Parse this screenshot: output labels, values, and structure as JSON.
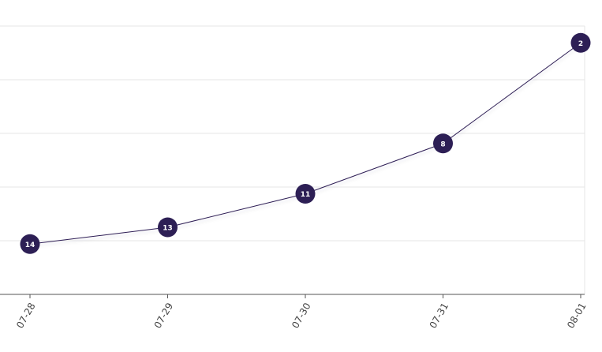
{
  "chart_data": {
    "type": "line",
    "categories": [
      "07-28",
      "07-29",
      "07-30",
      "07-31",
      "08-01"
    ],
    "values": [
      14,
      13,
      11,
      8,
      2
    ],
    "color": "#2d1f55",
    "ylim": [
      1,
      17
    ],
    "y_reversed": true,
    "yticks": [
      1,
      4.2,
      7.4,
      10.6,
      13.8,
      17
    ],
    "grid": true
  }
}
